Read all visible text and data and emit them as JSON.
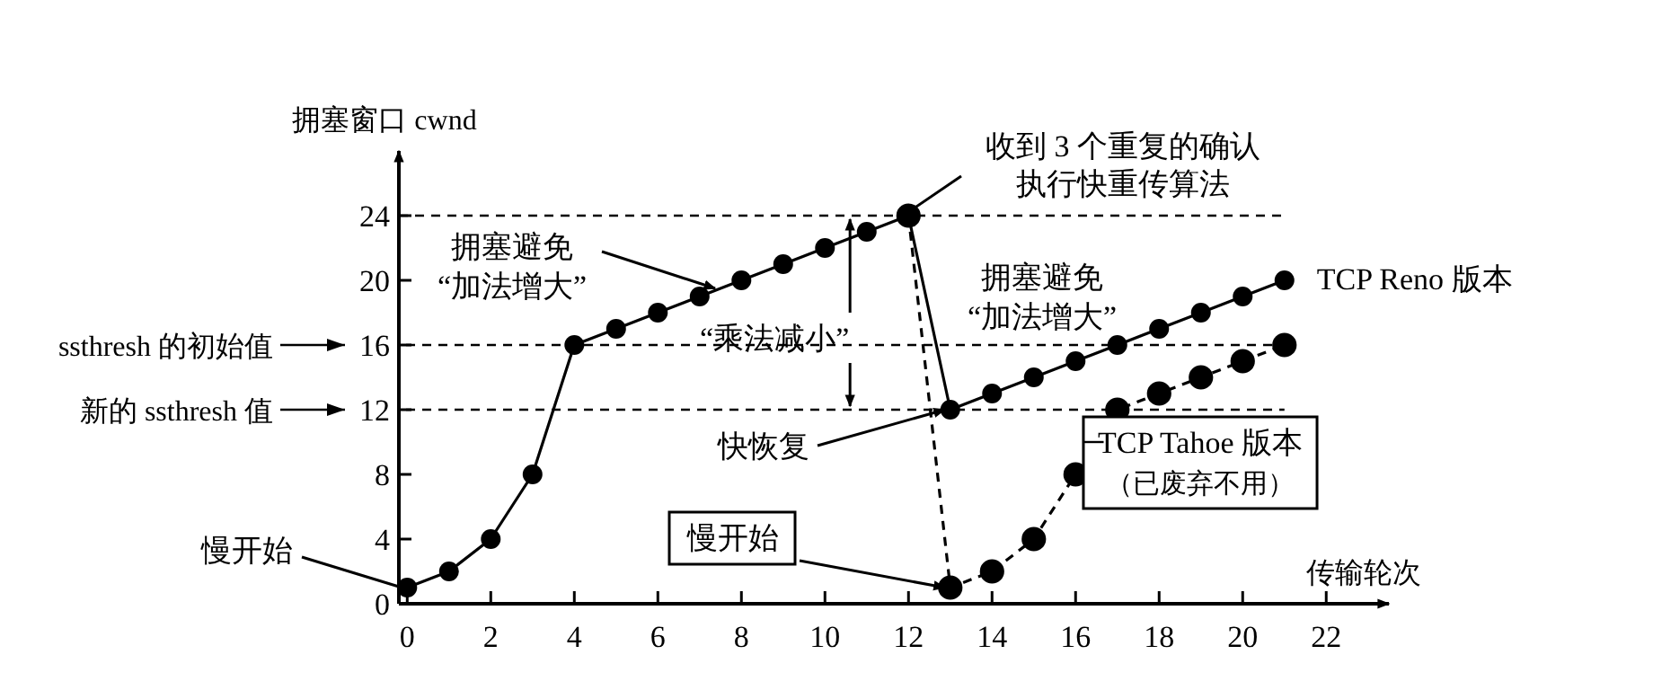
{
  "chart_data": {
    "type": "line",
    "xlabel": "传输轮次",
    "ylabel": "拥塞窗口 cwnd",
    "xlim": [
      -0.2,
      23.5
    ],
    "ylim": [
      0,
      28
    ],
    "xticks": [
      0,
      2,
      4,
      6,
      8,
      10,
      12,
      14,
      16,
      18,
      20,
      22
    ],
    "yticks": [
      0,
      4,
      8,
      12,
      16,
      20,
      24
    ],
    "grid": false,
    "legend": false,
    "marker": "circle",
    "series": [
      {
        "name": "TCP Reno 版本",
        "color": "#000000",
        "line_style": "solid",
        "x": [
          0,
          1,
          2,
          3,
          4,
          5,
          6,
          7,
          8,
          9,
          10,
          11,
          12,
          13,
          14,
          15,
          16,
          17,
          18,
          19,
          20,
          21
        ],
        "values": [
          1,
          2,
          4,
          8,
          16,
          17,
          18,
          19,
          20,
          21,
          22,
          23,
          24,
          12,
          13,
          14,
          15,
          16,
          17,
          18,
          19,
          20
        ]
      },
      {
        "name": "TCP Tahoe 版本",
        "color": "#000000",
        "line_style": "dashed",
        "x": [
          12,
          13,
          14,
          15,
          16,
          17,
          18,
          19,
          20,
          21
        ],
        "values": [
          24,
          1,
          2,
          4,
          8,
          12,
          13,
          14,
          15,
          16
        ]
      }
    ],
    "ref_lines": [
      {
        "axis": "y",
        "value": 24,
        "line_style": "dashed"
      },
      {
        "axis": "y",
        "value": 16,
        "label": "ssthresh 的初始值",
        "line_style": "dashed"
      },
      {
        "axis": "y",
        "value": 12,
        "label": "新的 ssthresh 值",
        "line_style": "dashed"
      }
    ],
    "annotations": [
      {
        "text": "慢开始",
        "x": 0,
        "y": 1
      },
      {
        "text": "拥塞避免\n“加法增大”",
        "x": 7.5,
        "y": 19.5
      },
      {
        "text": "“乘法减小”",
        "x": 10.6,
        "y": 12
      },
      {
        "text": "收到 3 个重复的确认执行快重传算法",
        "x": 12,
        "y": 24
      },
      {
        "text": "快恢复",
        "x": 13,
        "y": 12
      },
      {
        "text": "慢开始",
        "x": 13,
        "y": 1
      },
      "拥塞避免\n“加法增大”",
      "（已废弃不用）"
    ]
  }
}
